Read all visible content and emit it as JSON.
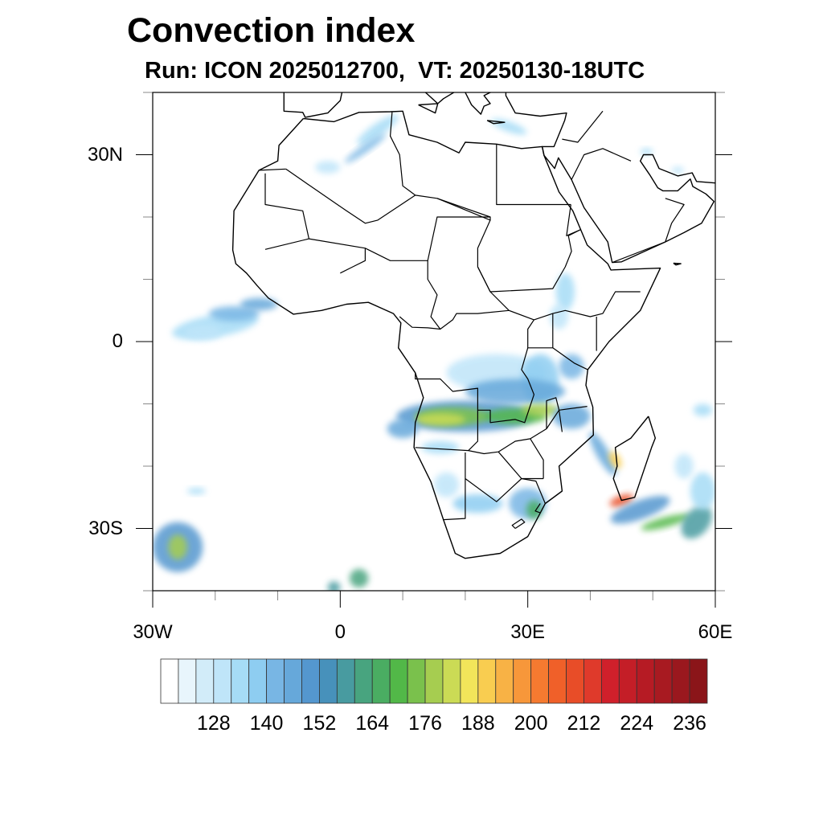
{
  "title": "Convection index",
  "subtitle": "Run: ICON 2025012700,  VT: 20250130-18UTC",
  "map": {
    "lon_range": [
      -30,
      60
    ],
    "lat_range": [
      -40,
      40
    ],
    "lat_labels": [
      {
        "lat": 30,
        "label": "30N"
      },
      {
        "lat": 0,
        "label": "0"
      },
      {
        "lat": -30,
        "label": "30S"
      }
    ],
    "lon_labels": [
      {
        "lon": -30,
        "label": "30W"
      },
      {
        "lon": 0,
        "label": "0"
      },
      {
        "lon": 30,
        "label": "30E"
      },
      {
        "lon": 60,
        "label": "60E"
      }
    ]
  },
  "colorbar": {
    "min": 116,
    "max": 240,
    "step": 4,
    "labels": [
      "128",
      "140",
      "152",
      "164",
      "176",
      "188",
      "200",
      "212",
      "224",
      "236"
    ],
    "colors": [
      "#ffffff",
      "#e8f5fc",
      "#d2ecf9",
      "#bfe5f9",
      "#a6dcf6",
      "#8ecdf1",
      "#78b6e4",
      "#66a8da",
      "#5497cf",
      "#4791bb",
      "#489ba0",
      "#48a47f",
      "#4aad62",
      "#52b848",
      "#7ac14c",
      "#a6cd50",
      "#cbdb55",
      "#f2e55a",
      "#f9cd50",
      "#f8b245",
      "#f7973a",
      "#f57a30",
      "#f06029",
      "#e84d28",
      "#df3a2b",
      "#d0202b",
      "#c41e27",
      "#b61b24",
      "#a81a21",
      "#9a181e",
      "#8b1519"
    ]
  }
}
